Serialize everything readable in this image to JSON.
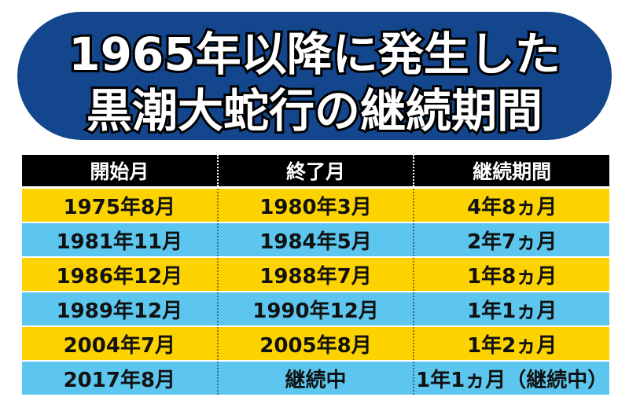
{
  "title": {
    "lines": [
      "1965年以降に発生した",
      "黒潮大蛇行の継続期間"
    ]
  },
  "table": {
    "header": [
      "開始月",
      "終了月",
      "継続期間"
    ],
    "rows": [
      [
        "1975年8月",
        "1980年3月",
        "4年8ヵ月"
      ],
      [
        "1981年11月",
        "1984年5月",
        "2年7ヵ月"
      ],
      [
        "1986年12月",
        "1988年7月",
        "1年8ヵ月"
      ],
      [
        "1989年12月",
        "1990年12月",
        "1年1ヵ月"
      ],
      [
        "2004年7月",
        "2005年8月",
        "1年2ヵ月"
      ],
      [
        "2017年8月",
        "継続中",
        "1年1ヵ月（継続中）"
      ]
    ]
  }
}
